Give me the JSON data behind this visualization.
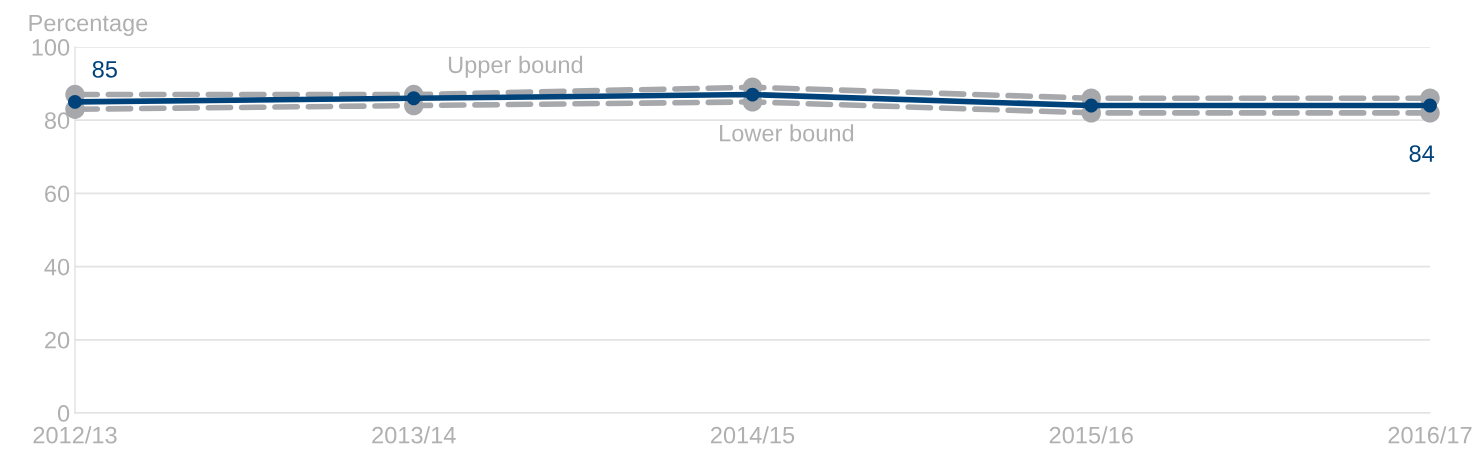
{
  "chart_data": {
    "type": "line",
    "ylabel": "Percentage",
    "categories": [
      "2012/13",
      "2013/14",
      "2014/15",
      "2015/16",
      "2016/17"
    ],
    "series": [
      {
        "name": "Upper bound",
        "color": "#a7a8ab",
        "values": [
          87,
          87,
          89,
          86,
          86
        ],
        "line_style": "dashed",
        "marker": "circle"
      },
      {
        "name": "Lower bound",
        "color": "#a7a8ab",
        "values": [
          83,
          84,
          85,
          82,
          82
        ],
        "line_style": "dashed",
        "marker": "circle"
      },
      {
        "color": "#00427a",
        "values": [
          85,
          86,
          87,
          84,
          84
        ],
        "line_style": "solid",
        "marker": "circle",
        "value_labels": [
          "85",
          null,
          null,
          null,
          "84"
        ]
      }
    ],
    "ylim": [
      0,
      100
    ],
    "yticks": [
      0,
      20,
      40,
      60,
      80,
      100
    ],
    "grid": "y",
    "legend": false
  }
}
